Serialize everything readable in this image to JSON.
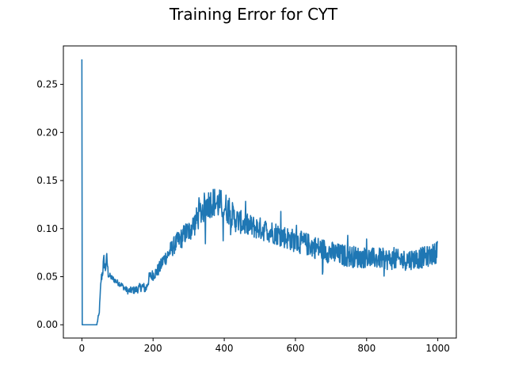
{
  "chart_data": {
    "type": "line",
    "title": "Training Error for CYT",
    "xlabel": "",
    "ylabel": "",
    "xlim": [
      -52,
      1052
    ],
    "ylim": [
      -0.0138,
      0.29
    ],
    "x_ticks": [
      0,
      200,
      400,
      600,
      800,
      1000
    ],
    "x_tick_labels": [
      "0",
      "200",
      "400",
      "600",
      "800",
      "1000"
    ],
    "y_ticks": [
      0.0,
      0.05,
      0.1,
      0.15,
      0.2,
      0.25
    ],
    "y_tick_labels": [
      "0.00",
      "0.05",
      "0.10",
      "0.15",
      "0.20",
      "0.25"
    ],
    "grid": false,
    "legend": "none",
    "color": "#1f77b4",
    "series": [
      {
        "values_anchor": [
          [
            0,
            0.276
          ],
          [
            1,
            0.0
          ],
          [
            42,
            0.0
          ],
          [
            45,
            0.006
          ],
          [
            48,
            0.01
          ],
          [
            50,
            0.02
          ],
          [
            54,
            0.047
          ],
          [
            58,
            0.055
          ],
          [
            62,
            0.067
          ],
          [
            66,
            0.058
          ],
          [
            70,
            0.07
          ],
          [
            74,
            0.053
          ],
          [
            80,
            0.05
          ],
          [
            90,
            0.047
          ],
          [
            100,
            0.044
          ],
          [
            110,
            0.042
          ],
          [
            120,
            0.038
          ],
          [
            130,
            0.035
          ],
          [
            140,
            0.036
          ],
          [
            150,
            0.036
          ],
          [
            160,
            0.038
          ],
          [
            170,
            0.04
          ],
          [
            180,
            0.037
          ],
          [
            190,
            0.05
          ],
          [
            200,
            0.052
          ],
          [
            210,
            0.055
          ],
          [
            220,
            0.06
          ],
          [
            230,
            0.068
          ],
          [
            240,
            0.072
          ],
          [
            250,
            0.078
          ],
          [
            260,
            0.083
          ],
          [
            270,
            0.087
          ],
          [
            280,
            0.09
          ],
          [
            290,
            0.095
          ],
          [
            300,
            0.097
          ],
          [
            310,
            0.102
          ],
          [
            320,
            0.107
          ],
          [
            330,
            0.115
          ],
          [
            340,
            0.12
          ],
          [
            350,
            0.125
          ],
          [
            360,
            0.127
          ],
          [
            370,
            0.128
          ],
          [
            380,
            0.126
          ],
          [
            390,
            0.125
          ],
          [
            400,
            0.123
          ],
          [
            410,
            0.12
          ],
          [
            420,
            0.115
          ],
          [
            430,
            0.11
          ],
          [
            440,
            0.108
          ],
          [
            450,
            0.106
          ],
          [
            460,
            0.104
          ],
          [
            480,
            0.102
          ],
          [
            500,
            0.1
          ],
          [
            520,
            0.098
          ],
          [
            540,
            0.096
          ],
          [
            560,
            0.093
          ],
          [
            580,
            0.09
          ],
          [
            600,
            0.087
          ],
          [
            620,
            0.085
          ],
          [
            640,
            0.083
          ],
          [
            660,
            0.08
          ],
          [
            680,
            0.078
          ],
          [
            700,
            0.075
          ],
          [
            720,
            0.073
          ],
          [
            740,
            0.072
          ],
          [
            760,
            0.071
          ],
          [
            780,
            0.07
          ],
          [
            800,
            0.07
          ],
          [
            820,
            0.069
          ],
          [
            840,
            0.069
          ],
          [
            860,
            0.068
          ],
          [
            880,
            0.068
          ],
          [
            900,
            0.067
          ],
          [
            920,
            0.068
          ],
          [
            940,
            0.069
          ],
          [
            960,
            0.07
          ],
          [
            980,
            0.072
          ],
          [
            995,
            0.075
          ],
          [
            999,
            0.087
          ]
        ],
        "noise_amplitude_by_x": [
          [
            0,
            0.0
          ],
          [
            45,
            0.002
          ],
          [
            60,
            0.008
          ],
          [
            80,
            0.003
          ],
          [
            120,
            0.003
          ],
          [
            200,
            0.006
          ],
          [
            300,
            0.012
          ],
          [
            350,
            0.016
          ],
          [
            400,
            0.016
          ],
          [
            450,
            0.012
          ],
          [
            600,
            0.012
          ],
          [
            700,
            0.012
          ],
          [
            800,
            0.011
          ],
          [
            900,
            0.011
          ],
          [
            1000,
            0.011
          ]
        ]
      }
    ]
  }
}
